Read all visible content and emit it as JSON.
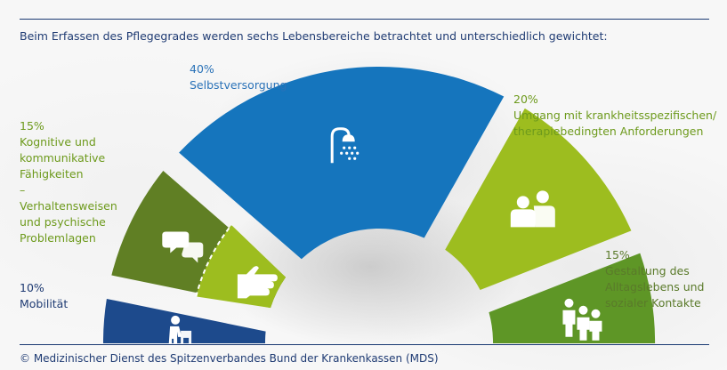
{
  "subtitle": "Beim Erfassen des Pflegegrades werden sechs Lebensbereiche betrachtet und unterschiedlich gewichtet:",
  "footer": "© Medizinischer Dienst des Spitzenverbandes Bund der Krankenkassen (MDS)",
  "colors": {
    "rule": "#1a3a73",
    "text_dark_blue": "#1f3b73",
    "text_blue": "#2a72b8",
    "text_green": "#6d9a1c",
    "text_olive": "#5a7a2a"
  },
  "chart_data": {
    "type": "pie",
    "variant": "half-donut",
    "order": "left-to-right",
    "slices": [
      {
        "name": "Mobilität",
        "value": 10,
        "label": "10%",
        "color": "#1d4a8c",
        "icon": "walker-person-icon"
      },
      {
        "name": "Kognitive und kommunikative Fähigkeiten – Verhaltensweisen und psychische Problemlagen",
        "value": 15,
        "label": "15%",
        "color_a": "#9dbd1f",
        "color_b": "#607f24",
        "icon_a": "hand-icon",
        "icon_b": "speech-bubbles-icon",
        "split": "dashed"
      },
      {
        "name": "Selbstversorgung",
        "value": 40,
        "label": "40%",
        "color": "#1575bd",
        "icon": "shower-icon"
      },
      {
        "name": "Umgang mit krankheitsspezifischen/ therapiebedingten Anforderungen",
        "value": 20,
        "label": "20%",
        "color": "#9dbd1f",
        "icon": "doctor-patient-icon"
      },
      {
        "name": "Gestaltung des Alltagslebens und sozialer Kontakte",
        "value": 15,
        "label": "15%",
        "color": "#5e9626",
        "icon": "group-people-icon"
      }
    ]
  },
  "labels": {
    "mobility": {
      "pct": "10%",
      "name": "Mobilität"
    },
    "cognitive": {
      "pct": "15%",
      "name": "Kognitive und\nkommunikative\nFähigkeiten\n–\nVerhaltensweisen\nund psychische\nProblemlagen"
    },
    "selfcare": {
      "pct": "40%",
      "name": "Selbstversorgung"
    },
    "therapy": {
      "pct": "20%",
      "name": "Umgang mit krankheitsspezifischen/\ntherapiebedingten Anforderungen"
    },
    "social": {
      "pct": "15%",
      "name": "Gestaltung des\nAlltagslebens und\nsozialer Kontakte"
    }
  }
}
